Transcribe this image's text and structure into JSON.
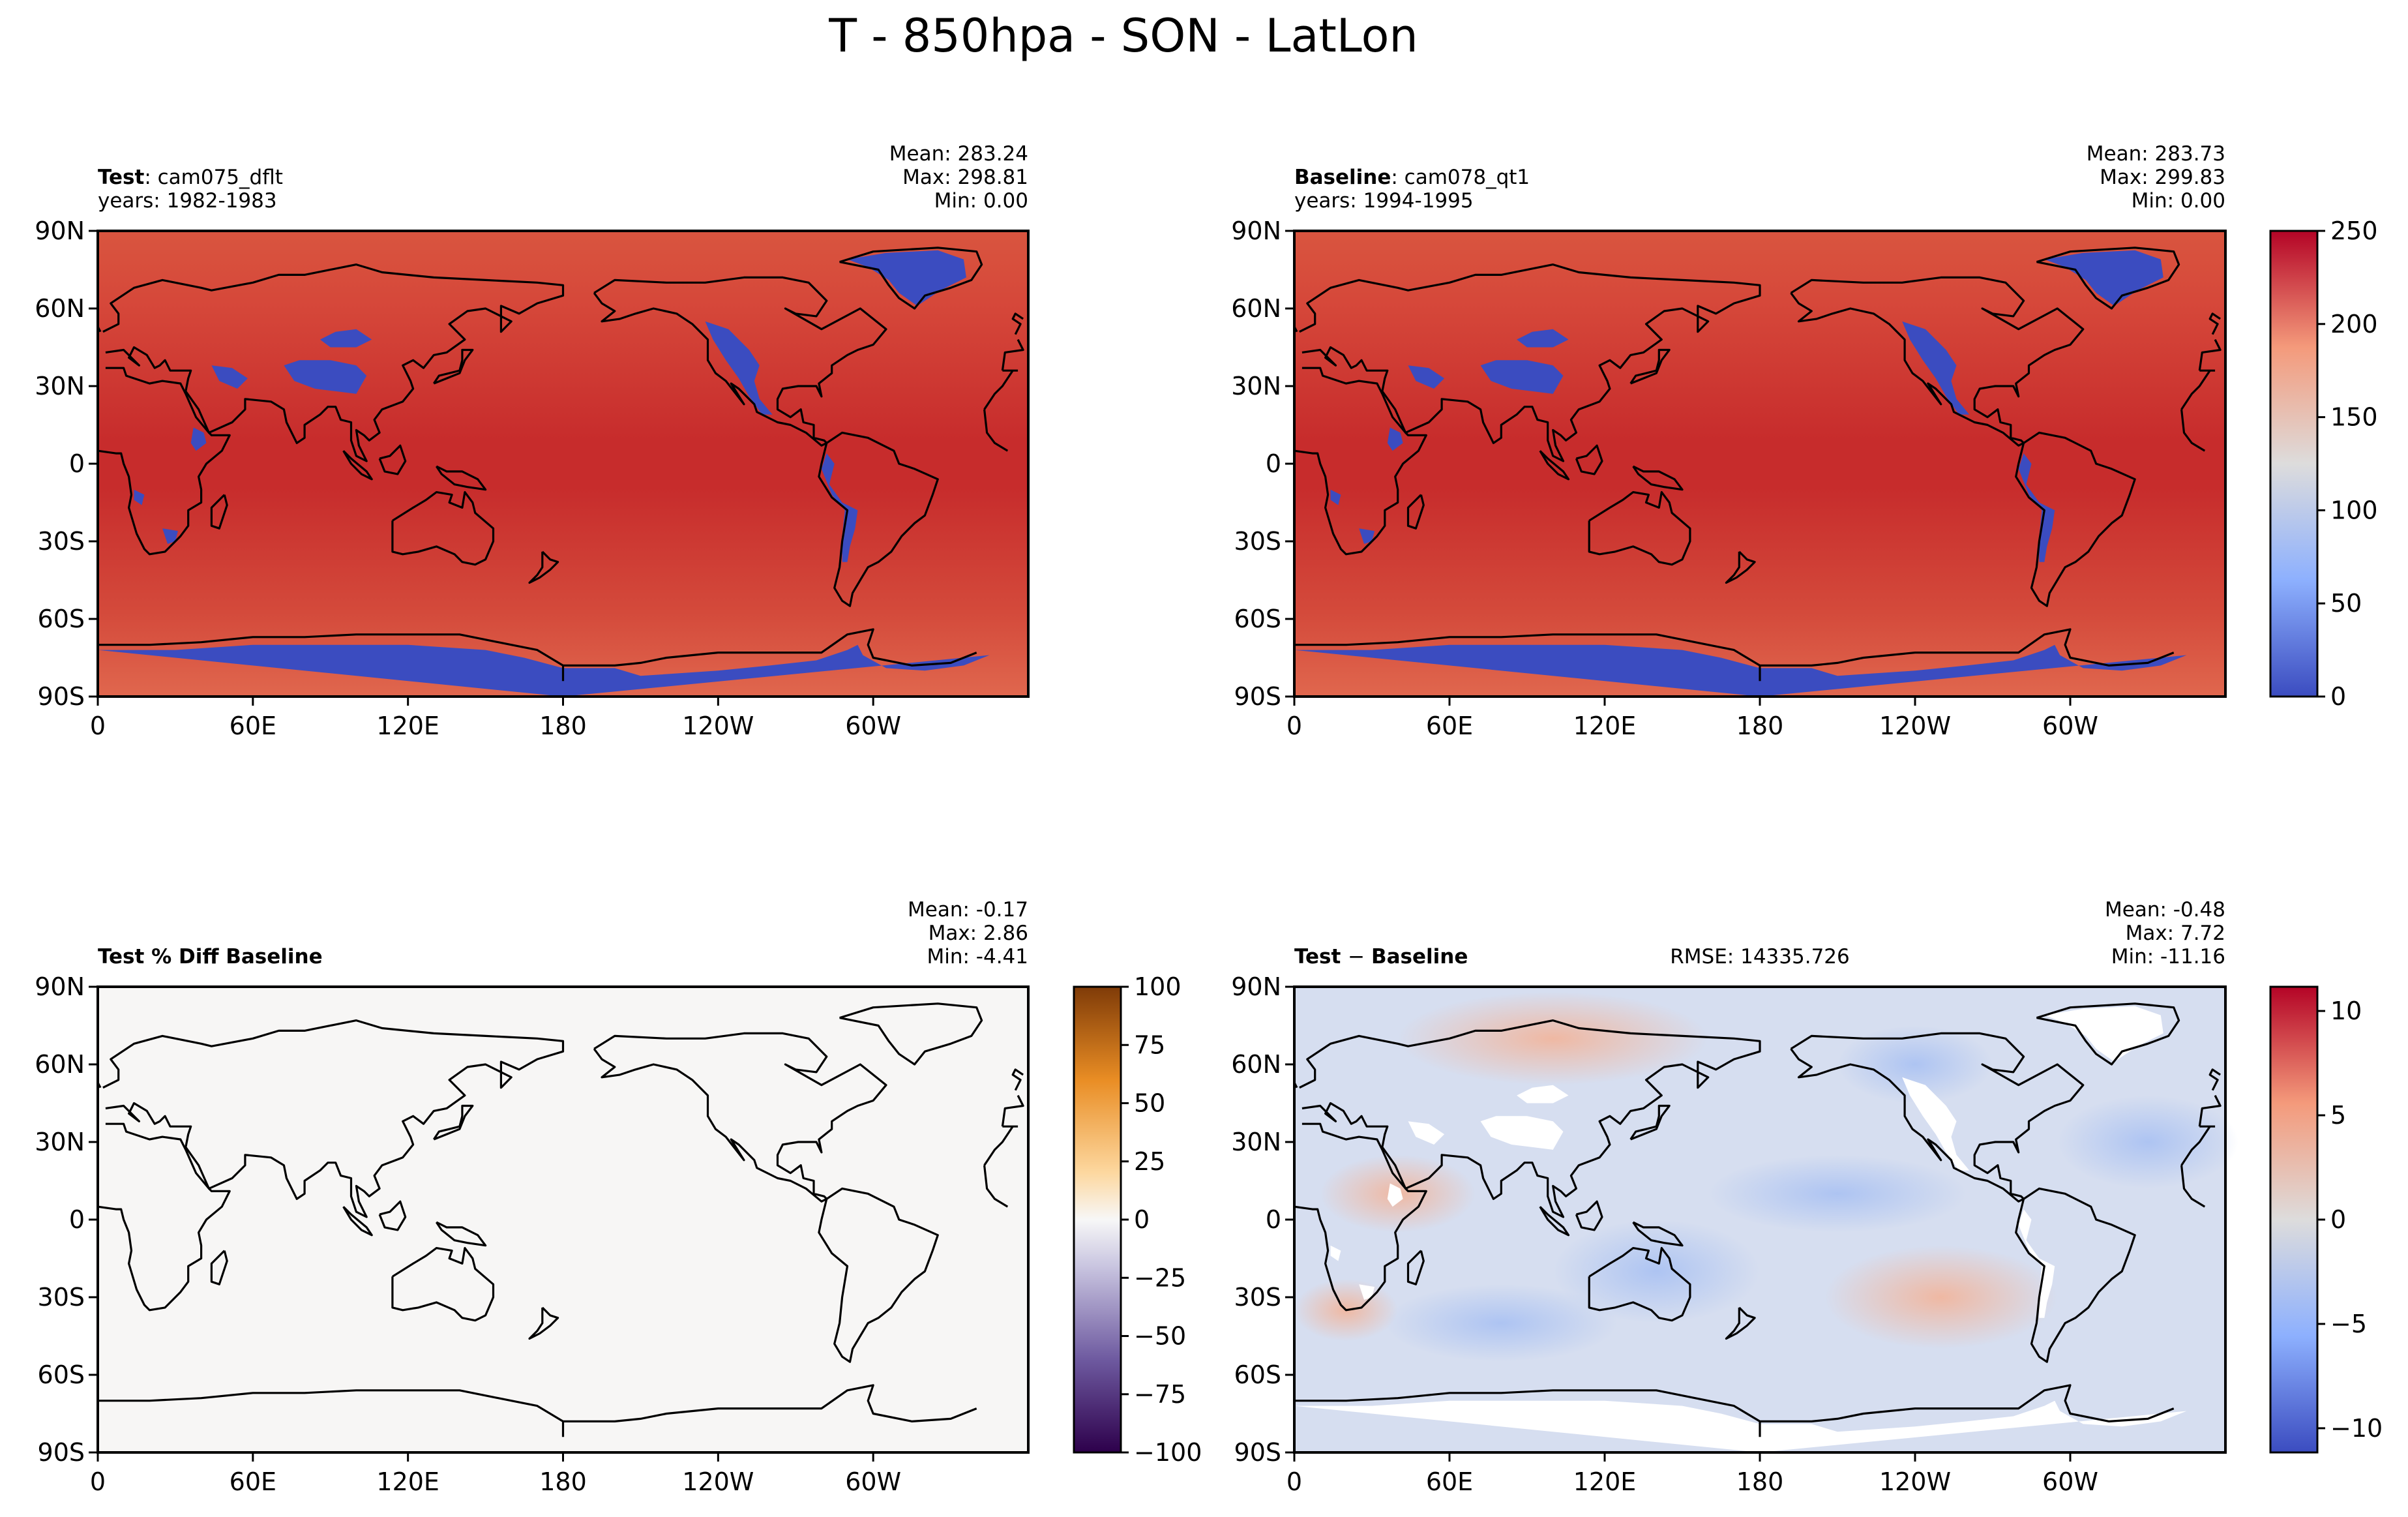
{
  "figure": {
    "title": "T - 850hpa - SON - LatLon"
  },
  "axes_ticks": {
    "lat": [
      "90N",
      "60N",
      "30N",
      "0",
      "30S",
      "60S",
      "90S"
    ],
    "lon": [
      "0",
      "60E",
      "120E",
      "180",
      "120W",
      "60W"
    ]
  },
  "colors": {
    "ocean_warm": "#c9302f",
    "ocean_mid": "#d6473b",
    "polar_ocean": "#e0614a",
    "masked_blue": "#3b4cc0",
    "diff_background": "#f7f6f5",
    "coast": "#000000"
  },
  "chart_data": [
    {
      "type": "heatmap",
      "panel": "test",
      "label_bold": "Test",
      "label_rest": ": cam075_dflt",
      "years": "years: 1982-1983",
      "stats": {
        "mean": "Mean: 283.24",
        "max": "Max: 298.81",
        "min": "Min:  0.00"
      },
      "lat_range": [
        -90,
        90
      ],
      "lon_range": [
        0,
        360
      ],
      "colormap": "coolwarm",
      "colorbar": null
    },
    {
      "type": "heatmap",
      "panel": "baseline",
      "label_bold": "Baseline",
      "label_rest": ": cam078_qt1",
      "years": "years: 1994-1995",
      "stats": {
        "mean": "Mean: 283.73",
        "max": "Max: 299.83",
        "min": "Min:  0.00"
      },
      "lat_range": [
        -90,
        90
      ],
      "lon_range": [
        0,
        360
      ],
      "colormap": "coolwarm",
      "colorbar": {
        "range": [
          0,
          298
        ],
        "ticks": [
          "250",
          "200",
          "150",
          "100",
          "50",
          "0"
        ]
      }
    },
    {
      "type": "heatmap",
      "panel": "pct_diff",
      "label_bold": "Test % Diff Baseline",
      "stats": {
        "mean": "Mean: -0.17",
        "max": "Max:  2.86",
        "min": "Min: -4.41"
      },
      "lat_range": [
        -90,
        90
      ],
      "lon_range": [
        0,
        360
      ],
      "colormap": "PuOr",
      "colorbar": {
        "range": [
          -100,
          100
        ],
        "ticks": [
          "100",
          "75",
          "50",
          "25",
          "0",
          "−25",
          "−50",
          "−75",
          "−100"
        ]
      }
    },
    {
      "type": "heatmap",
      "panel": "diff",
      "label_bold": "Test",
      "label_mid": "−",
      "label_bold2": "Baseline",
      "rmse": "RMSE: 14335.726",
      "stats": {
        "mean": "Mean: -0.48",
        "max": "Max:  7.72",
        "min": "Min: -11.16"
      },
      "lat_range": [
        -90,
        90
      ],
      "lon_range": [
        0,
        360
      ],
      "colormap": "coolwarm",
      "colorbar": {
        "range": [
          -11.16,
          11.16
        ],
        "ticks": [
          "10",
          "5",
          "0",
          "−5",
          "−10"
        ]
      }
    }
  ]
}
